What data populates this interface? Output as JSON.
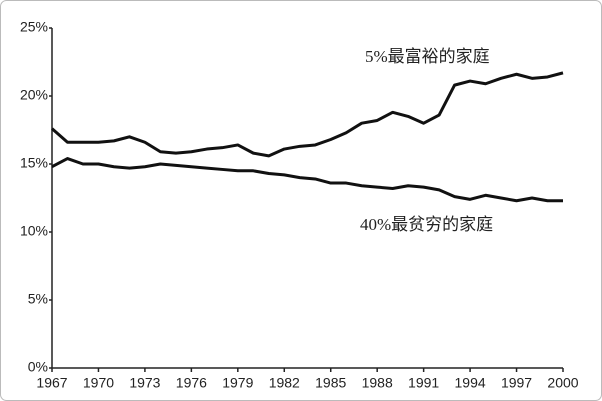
{
  "chart_data": {
    "type": "line",
    "x": [
      1967,
      1968,
      1969,
      1970,
      1971,
      1972,
      1973,
      1974,
      1975,
      1976,
      1977,
      1978,
      1979,
      1980,
      1981,
      1982,
      1983,
      1984,
      1985,
      1986,
      1987,
      1988,
      1989,
      1990,
      1991,
      1992,
      1993,
      1994,
      1995,
      1996,
      1997,
      1998,
      1999,
      2000
    ],
    "series": [
      {
        "name": "5%最富裕的家庭",
        "color": "#111111",
        "values": [
          17.6,
          16.6,
          16.6,
          16.6,
          16.7,
          17.0,
          16.6,
          15.9,
          15.8,
          15.9,
          16.1,
          16.2,
          16.4,
          15.8,
          15.6,
          16.1,
          16.3,
          16.4,
          16.8,
          17.3,
          18.0,
          18.2,
          18.8,
          18.5,
          18.0,
          18.6,
          20.8,
          21.1,
          20.9,
          21.3,
          21.6,
          21.3,
          21.4,
          21.7
        ]
      },
      {
        "name": "40%最贫穷的家庭",
        "color": "#111111",
        "values": [
          14.8,
          15.4,
          15.0,
          15.0,
          14.8,
          14.7,
          14.8,
          15.0,
          14.9,
          14.8,
          14.7,
          14.6,
          14.5,
          14.5,
          14.3,
          14.2,
          14.0,
          13.9,
          13.6,
          13.6,
          13.4,
          13.3,
          13.2,
          13.4,
          13.3,
          13.1,
          12.6,
          12.4,
          12.7,
          12.5,
          12.3,
          12.5,
          12.3,
          12.3
        ]
      }
    ],
    "xlim": [
      1967,
      2000
    ],
    "xticks": [
      1967,
      1970,
      1973,
      1976,
      1979,
      1982,
      1985,
      1988,
      1991,
      1994,
      1997,
      2000
    ],
    "ylim": [
      0,
      25
    ],
    "yticks": [
      {
        "value": 0,
        "label": "0%"
      },
      {
        "value": 5,
        "label": "5%"
      },
      {
        "value": 10,
        "label": "10%"
      },
      {
        "value": 15,
        "label": "15%"
      },
      {
        "value": 20,
        "label": "20%"
      },
      {
        "value": 25,
        "label": "25%"
      }
    ],
    "grid": false
  }
}
